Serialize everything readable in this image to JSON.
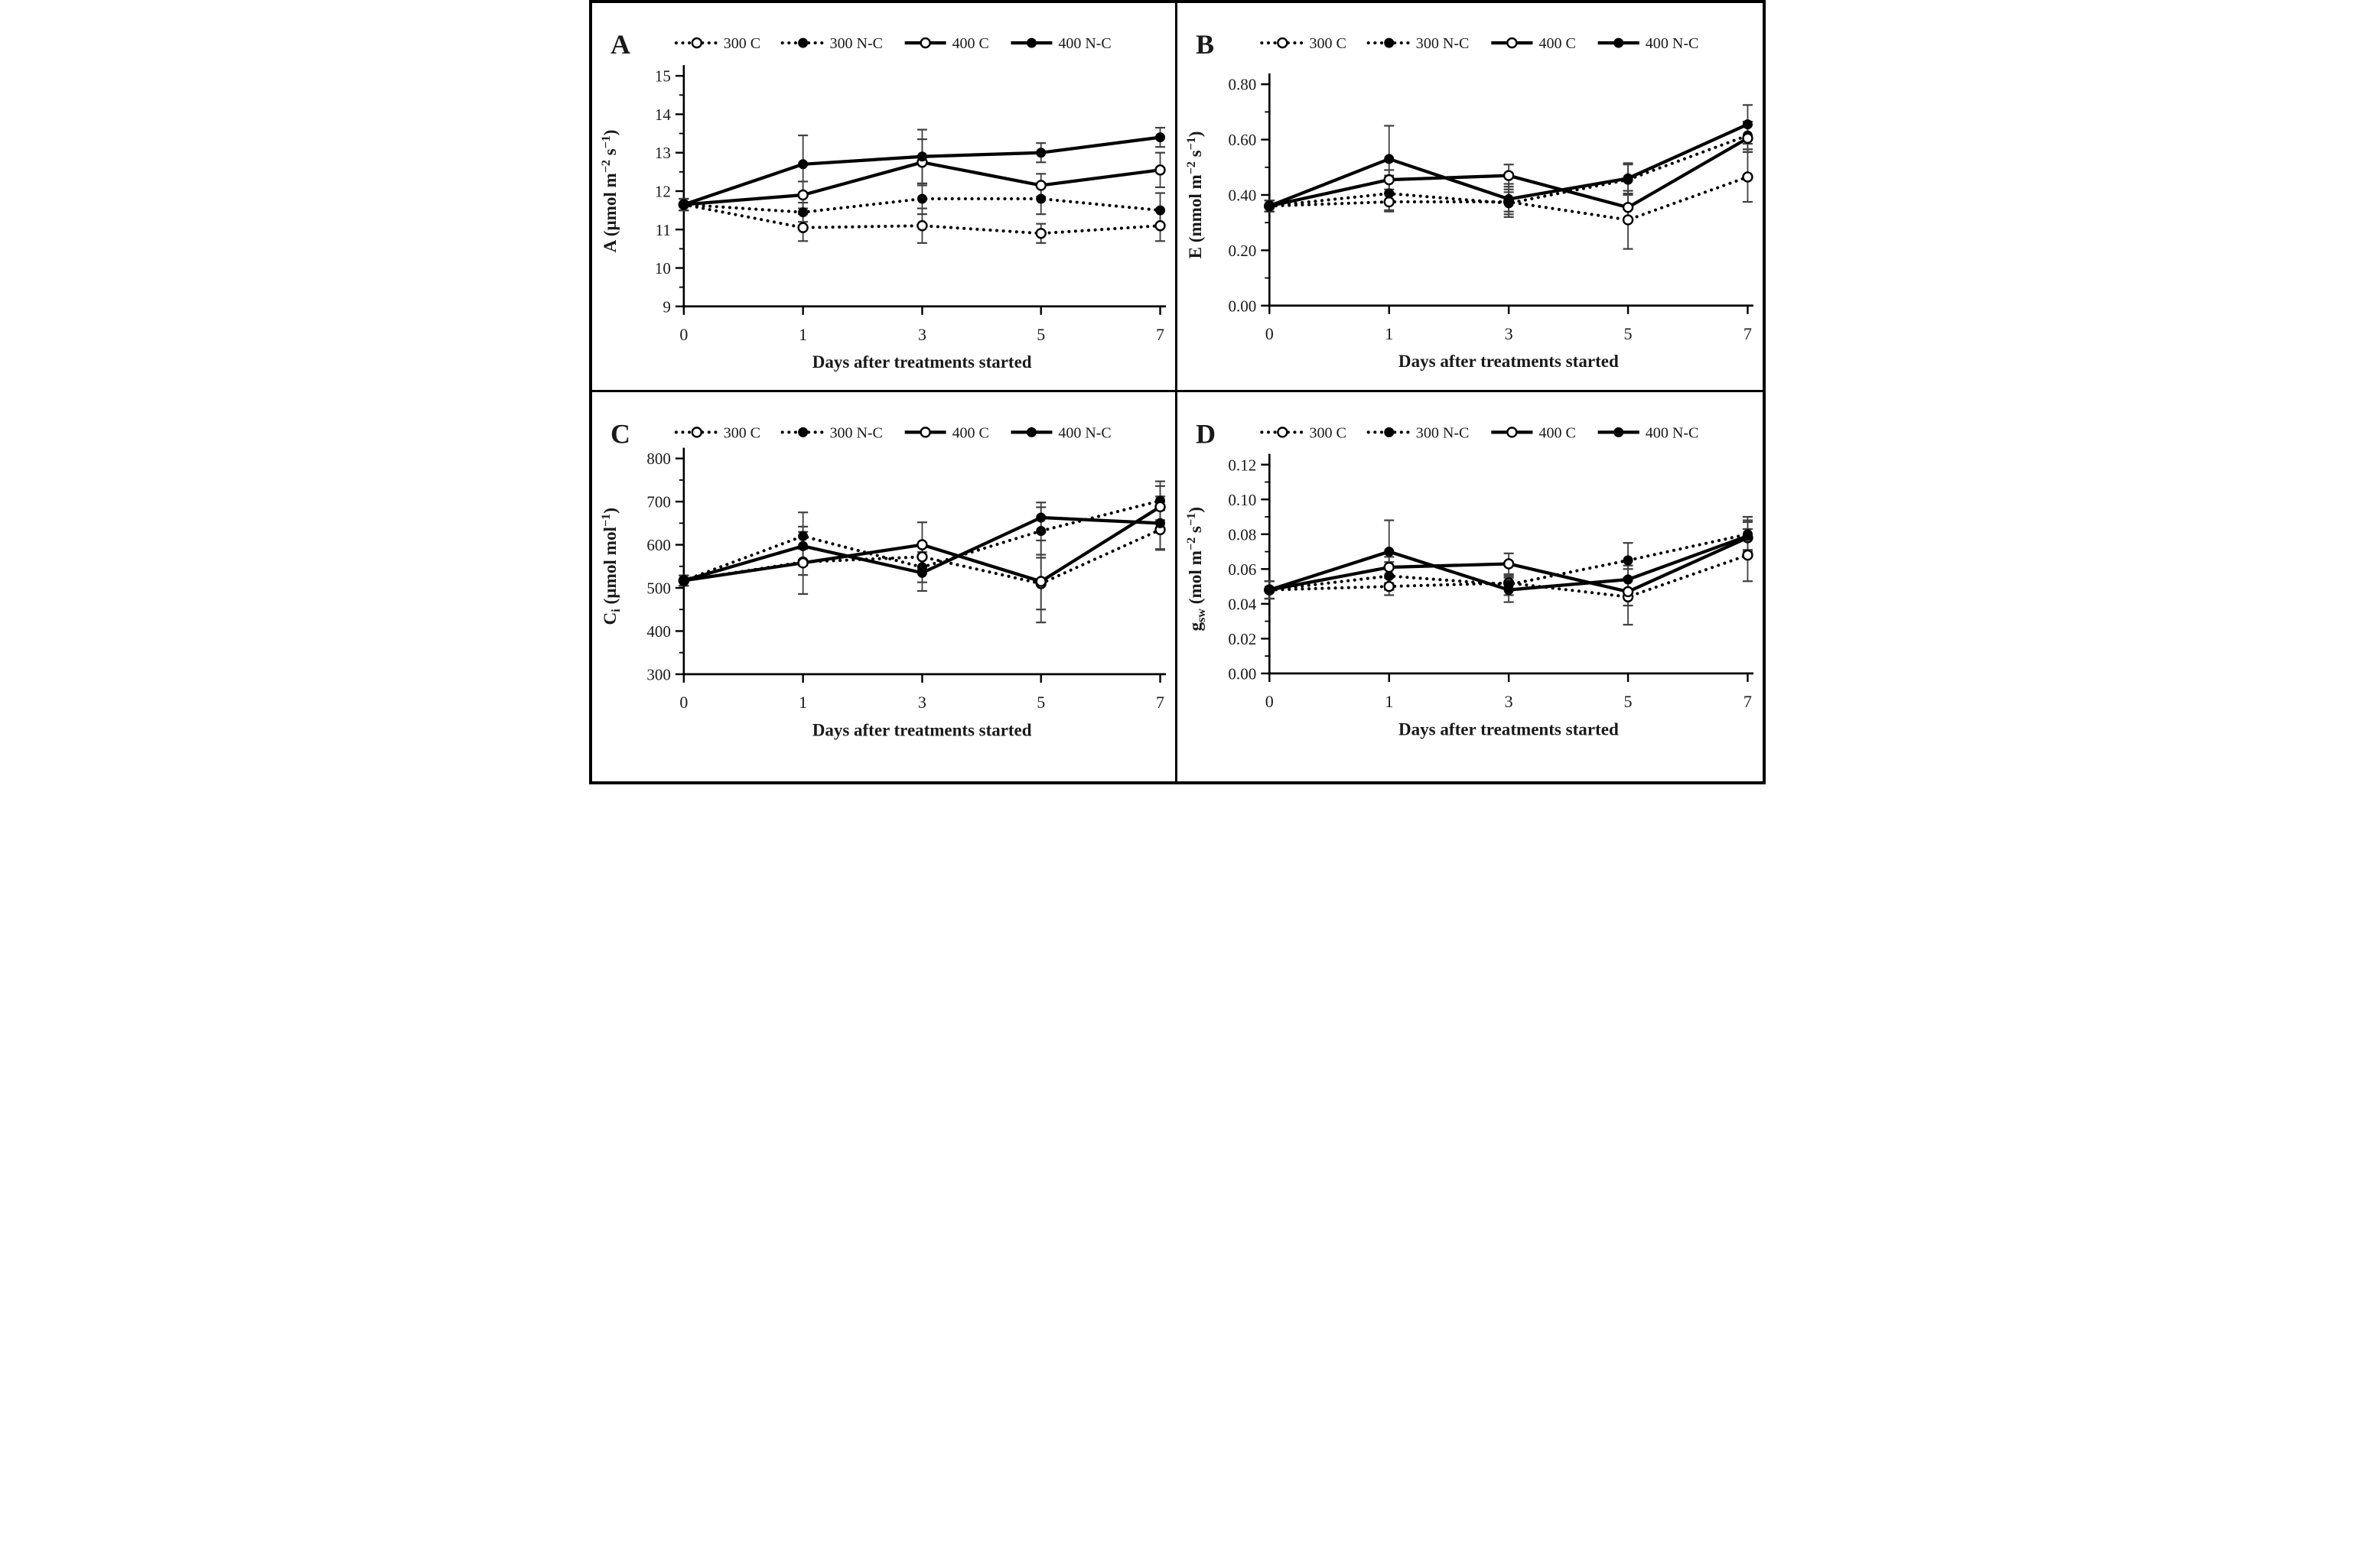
{
  "figure": {
    "type": "four-panel-line-figure",
    "background": "#ffffff",
    "border_color": "#000000",
    "series_color": "#000000",
    "error_bar_color": "#404040",
    "xlabel": "Days after treatments started",
    "legend_labels": [
      "300 C",
      "300 N-C",
      "400 C",
      "400 N-C"
    ]
  },
  "chart_data": [
    {
      "panel": "A",
      "type": "line",
      "title": "",
      "xlabel": "Days after treatments started",
      "ylabel": "A (µmol m^−2^ s^−1^)",
      "x": [
        0,
        1,
        3,
        5,
        7
      ],
      "xtick_labels": [
        "0",
        "1",
        "3",
        "5",
        "7"
      ],
      "ylim": [
        9,
        15
      ],
      "ytick_step": 1,
      "ytick_minor_step": 0.5,
      "ytick_decimals": 0,
      "grid": false,
      "legend_position": "top",
      "series": [
        {
          "name": "300 C",
          "line": "dotted",
          "marker": "open",
          "values": [
            11.65,
            11.05,
            11.1,
            10.9,
            11.1
          ],
          "errors": [
            0.15,
            0.35,
            0.45,
            0.25,
            0.4
          ]
        },
        {
          "name": "300 N-C",
          "line": "dotted",
          "marker": "filled",
          "values": [
            11.65,
            11.45,
            11.8,
            11.8,
            11.5
          ],
          "errors": [
            0.15,
            0.25,
            0.4,
            0.4,
            0.45
          ]
        },
        {
          "name": "400 C",
          "line": "solid",
          "marker": "open",
          "values": [
            11.65,
            11.9,
            12.75,
            12.15,
            12.55
          ],
          "errors": [
            0.15,
            0.35,
            0.6,
            0.3,
            0.45
          ]
        },
        {
          "name": "400 N-C",
          "line": "solid",
          "marker": "filled",
          "values": [
            11.65,
            12.7,
            12.9,
            13.0,
            13.4
          ],
          "errors": [
            0.15,
            0.75,
            0.7,
            0.25,
            0.25
          ]
        }
      ]
    },
    {
      "panel": "B",
      "type": "line",
      "title": "",
      "xlabel": "Days after treatments started",
      "ylabel": "E (mmol m^−2^ s^−1^)",
      "x": [
        0,
        1,
        3,
        5,
        7
      ],
      "xtick_labels": [
        "0",
        "1",
        "3",
        "5",
        "7"
      ],
      "ylim": [
        0.0,
        0.8
      ],
      "ytick_step": 0.2,
      "ytick_minor_step": 0.1,
      "ytick_decimals": 2,
      "grid": false,
      "legend_position": "top",
      "series": [
        {
          "name": "300 C",
          "line": "dotted",
          "marker": "open",
          "values": [
            0.36,
            0.375,
            0.375,
            0.31,
            0.465
          ],
          "errors": [
            0.02,
            0.03,
            0.035,
            0.105,
            0.09
          ]
        },
        {
          "name": "300 N-C",
          "line": "dotted",
          "marker": "filled",
          "values": [
            0.36,
            0.405,
            0.37,
            0.455,
            0.615
          ],
          "errors": [
            0.02,
            0.065,
            0.05,
            0.055,
            0.05
          ]
        },
        {
          "name": "400 C",
          "line": "solid",
          "marker": "open",
          "values": [
            0.36,
            0.455,
            0.47,
            0.355,
            0.605
          ],
          "errors": [
            0.02,
            0.035,
            0.04,
            0.05,
            0.05
          ]
        },
        {
          "name": "400 N-C",
          "line": "solid",
          "marker": "filled",
          "values": [
            0.36,
            0.53,
            0.385,
            0.46,
            0.655
          ],
          "errors": [
            0.02,
            0.12,
            0.055,
            0.055,
            0.07
          ]
        }
      ]
    },
    {
      "panel": "C",
      "type": "line",
      "title": "",
      "xlabel": "Days after treatments started",
      "ylabel": "C_i_ (µmol mol^−1^)",
      "x": [
        0,
        1,
        3,
        5,
        7
      ],
      "xtick_labels": [
        "0",
        "1",
        "3",
        "5",
        "7"
      ],
      "ylim": [
        300,
        800
      ],
      "ytick_step": 100,
      "ytick_minor_step": 50,
      "ytick_decimals": 0,
      "grid": false,
      "legend_position": "top",
      "series": [
        {
          "name": "300 C",
          "line": "dotted",
          "marker": "open",
          "values": [
            517,
            560,
            572,
            510,
            635
          ],
          "errors": [
            12,
            30,
            30,
            60,
            45
          ]
        },
        {
          "name": "300 N-C",
          "line": "dotted",
          "marker": "filled",
          "values": [
            517,
            620,
            548,
            632,
            702
          ],
          "errors": [
            12,
            55,
            35,
            55,
            45
          ]
        },
        {
          "name": "400 C",
          "line": "solid",
          "marker": "open",
          "values": [
            517,
            558,
            600,
            515,
            688
          ],
          "errors": [
            12,
            72,
            52,
            95,
            48
          ]
        },
        {
          "name": "400 N-C",
          "line": "solid",
          "marker": "filled",
          "values": [
            517,
            597,
            535,
            663,
            650
          ],
          "errors": [
            12,
            45,
            42,
            35,
            62
          ]
        }
      ]
    },
    {
      "panel": "D",
      "type": "line",
      "title": "",
      "xlabel": "Days after treatments started",
      "ylabel": "g_sw_ (mol m^−2^ s^−1^)",
      "x": [
        0,
        1,
        3,
        5,
        7
      ],
      "xtick_labels": [
        "0",
        "1",
        "3",
        "5",
        "7"
      ],
      "ylim": [
        0.0,
        0.12
      ],
      "ytick_step": 0.02,
      "ytick_minor_step": 0.01,
      "ytick_decimals": 2,
      "grid": false,
      "legend_position": "top",
      "series": [
        {
          "name": "300 C",
          "line": "dotted",
          "marker": "open",
          "values": [
            0.048,
            0.05,
            0.052,
            0.044,
            0.068
          ],
          "errors": [
            0.005,
            0.005,
            0.004,
            0.016,
            0.015
          ]
        },
        {
          "name": "300 N-C",
          "line": "dotted",
          "marker": "filled",
          "values": [
            0.048,
            0.056,
            0.051,
            0.065,
            0.08
          ],
          "errors": [
            0.005,
            0.008,
            0.006,
            0.01,
            0.01
          ]
        },
        {
          "name": "400 C",
          "line": "solid",
          "marker": "open",
          "values": [
            0.048,
            0.061,
            0.063,
            0.047,
            0.078
          ],
          "errors": [
            0.005,
            0.006,
            0.006,
            0.008,
            0.01
          ]
        },
        {
          "name": "400 N-C",
          "line": "solid",
          "marker": "filled",
          "values": [
            0.048,
            0.07,
            0.048,
            0.054,
            0.079
          ],
          "errors": [
            0.005,
            0.018,
            0.007,
            0.008,
            0.008
          ]
        }
      ]
    }
  ]
}
